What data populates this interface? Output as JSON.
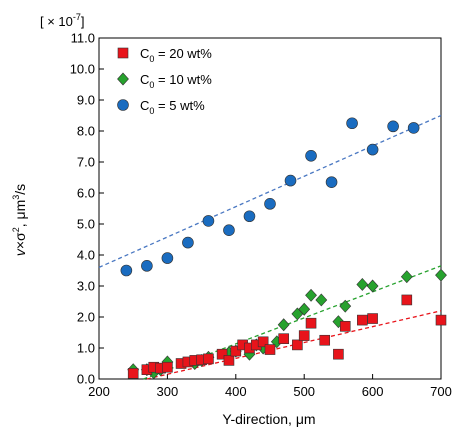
{
  "chart_data": {
    "type": "scatter",
    "multiplier_label": "[ × 10",
    "multiplier_exp": "-7",
    "multiplier_close": "]",
    "xlabel": "Y-direction, μm",
    "ylabel_v": "v",
    "ylabel_rest": "×σ",
    "ylabel_sup": "2",
    "ylabel_unit": ", μm",
    "ylabel_unit_sup": "3",
    "ylabel_unit_end": "/s",
    "xlim": [
      200,
      700
    ],
    "ylim": [
      0,
      11
    ],
    "x_ticks": [
      200,
      300,
      400,
      500,
      600,
      700
    ],
    "y_ticks": [
      "0.0",
      "1.0",
      "2.0",
      "3.0",
      "4.0",
      "5.0",
      "6.0",
      "7.0",
      "8.0",
      "9.0",
      "10.0",
      "11.0"
    ],
    "legend_position": "top-left",
    "series": [
      {
        "name_main": "C",
        "name_sub": "0",
        "name_rest": " = 20 wt%",
        "marker": "square",
        "color": "#e8141b",
        "trend_color": "#e8141b",
        "trend": [
          [
            270,
            0.0
          ],
          [
            700,
            2.2
          ]
        ],
        "points": [
          [
            250,
            0.18
          ],
          [
            270,
            0.3
          ],
          [
            280,
            0.38
          ],
          [
            290,
            0.35
          ],
          [
            300,
            0.38
          ],
          [
            320,
            0.5
          ],
          [
            330,
            0.55
          ],
          [
            340,
            0.6
          ],
          [
            350,
            0.62
          ],
          [
            360,
            0.65
          ],
          [
            380,
            0.8
          ],
          [
            390,
            0.6
          ],
          [
            400,
            0.9
          ],
          [
            410,
            1.1
          ],
          [
            420,
            1.0
          ],
          [
            430,
            1.1
          ],
          [
            440,
            1.2
          ],
          [
            450,
            0.95
          ],
          [
            470,
            1.3
          ],
          [
            490,
            1.1
          ],
          [
            500,
            1.4
          ],
          [
            510,
            1.8
          ],
          [
            530,
            1.25
          ],
          [
            550,
            0.8
          ],
          [
            560,
            1.7
          ],
          [
            585,
            1.9
          ],
          [
            600,
            1.95
          ],
          [
            650,
            2.55
          ],
          [
            700,
            1.9
          ]
        ]
      },
      {
        "name_main": "C",
        "name_sub": "0",
        "name_rest": " = 10 wt%",
        "marker": "diamond",
        "color": "#27a22e",
        "trend_color": "#27a22e",
        "trend": [
          [
            265,
            0.0
          ],
          [
            700,
            3.65
          ]
        ],
        "points": [
          [
            250,
            0.3
          ],
          [
            270,
            0.3
          ],
          [
            280,
            0.2
          ],
          [
            290,
            0.3
          ],
          [
            300,
            0.55
          ],
          [
            340,
            0.5
          ],
          [
            350,
            0.6
          ],
          [
            360,
            0.7
          ],
          [
            390,
            0.85
          ],
          [
            400,
            0.9
          ],
          [
            420,
            0.8
          ],
          [
            430,
            1.1
          ],
          [
            440,
            1.0
          ],
          [
            460,
            1.2
          ],
          [
            470,
            1.75
          ],
          [
            490,
            2.1
          ],
          [
            500,
            2.25
          ],
          [
            510,
            2.7
          ],
          [
            525,
            2.55
          ],
          [
            550,
            1.85
          ],
          [
            560,
            2.35
          ],
          [
            585,
            3.05
          ],
          [
            600,
            3.0
          ],
          [
            650,
            3.3
          ],
          [
            700,
            3.35
          ]
        ]
      },
      {
        "name_main": "C",
        "name_sub": "0",
        "name_rest": " = 5 wt%",
        "marker": "circle",
        "color": "#1a6cc0",
        "trend_color": "#4a78c2",
        "trend": [
          [
            200,
            3.6
          ],
          [
            700,
            8.5
          ]
        ],
        "points": [
          [
            240,
            3.5
          ],
          [
            270,
            3.65
          ],
          [
            300,
            3.9
          ],
          [
            330,
            4.4
          ],
          [
            360,
            5.1
          ],
          [
            390,
            4.8
          ],
          [
            420,
            5.25
          ],
          [
            450,
            5.65
          ],
          [
            480,
            6.4
          ],
          [
            510,
            7.2
          ],
          [
            540,
            6.35
          ],
          [
            570,
            8.25
          ],
          [
            600,
            7.4
          ],
          [
            630,
            8.15
          ],
          [
            660,
            8.1
          ]
        ]
      }
    ]
  }
}
